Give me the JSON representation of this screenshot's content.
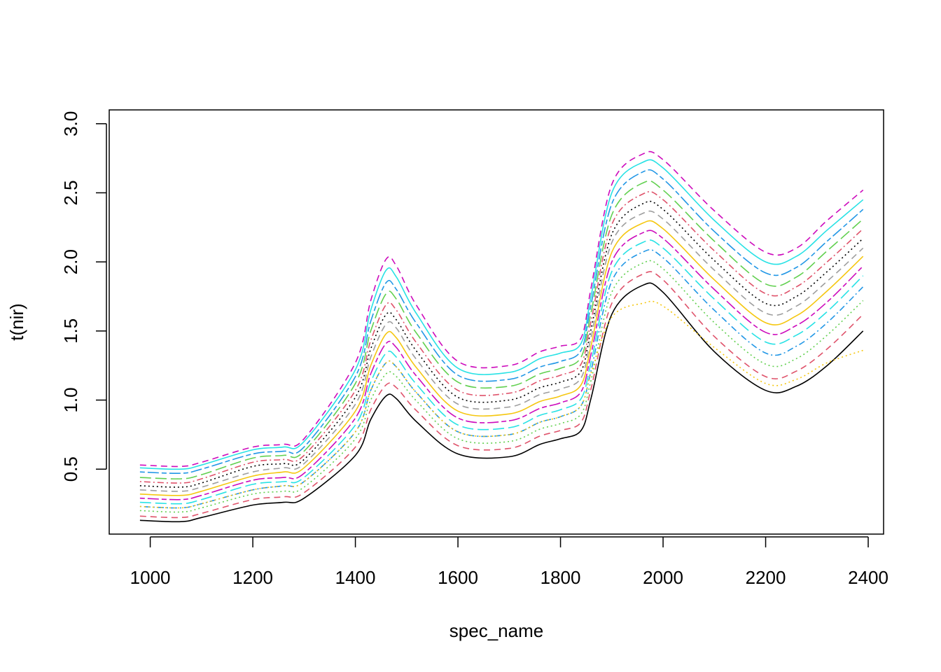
{
  "chart_data": {
    "type": "line",
    "title": "",
    "xlabel": "spec_name",
    "ylabel": "t(nir)",
    "xlim": [
      920,
      2430
    ],
    "ylim": [
      0.03,
      3.1
    ],
    "x_ticks": [
      1000,
      1200,
      1400,
      1600,
      1800,
      2000,
      2200,
      2400
    ],
    "y_ticks": [
      0.5,
      1.0,
      1.5,
      2.0,
      2.5,
      3.0
    ],
    "x_tick_labels": [
      "1000",
      "1200",
      "1400",
      "1600",
      "1800",
      "2000",
      "2200",
      "2400"
    ],
    "y_tick_labels": [
      "0.5",
      "1.0",
      "1.5",
      "2.0",
      "2.5",
      "3.0"
    ],
    "grid": false,
    "legend": "none",
    "series_colors": [
      "#000000",
      "#DF536B",
      "#61D04F",
      "#2297E6",
      "#28E2E5",
      "#CD0BBC",
      "#F5C710",
      "#9E9E9E"
    ],
    "line_styles": [
      "solid",
      "dashed",
      "dotted",
      "dotdash",
      "longdash",
      "twodash"
    ],
    "x": [
      980,
      1060,
      1100,
      1200,
      1260,
      1300,
      1400,
      1430,
      1460,
      1480,
      1520,
      1600,
      1700,
      1760,
      1800,
      1840,
      1860,
      1900,
      1960,
      2000,
      2100,
      2200,
      2260,
      2320,
      2390
    ],
    "series": [
      {
        "values": [
          0.13,
          0.12,
          0.15,
          0.24,
          0.26,
          0.29,
          0.6,
          0.86,
          1.03,
          1.01,
          0.84,
          0.61,
          0.59,
          0.68,
          0.72,
          0.78,
          1.02,
          1.62,
          1.83,
          1.78,
          1.35,
          1.07,
          1.1,
          1.25,
          1.5
        ]
      },
      {
        "values": [
          0.16,
          0.15,
          0.18,
          0.28,
          0.3,
          0.33,
          0.66,
          0.93,
          1.11,
          1.09,
          0.92,
          0.67,
          0.65,
          0.74,
          0.78,
          0.84,
          1.09,
          1.7,
          1.91,
          1.87,
          1.46,
          1.17,
          1.21,
          1.37,
          1.62
        ]
      },
      {
        "values": [
          0.2,
          0.19,
          0.22,
          0.32,
          0.34,
          0.37,
          0.72,
          1.0,
          1.19,
          1.17,
          0.99,
          0.72,
          0.7,
          0.79,
          0.83,
          0.9,
          1.15,
          1.78,
          1.99,
          1.95,
          1.56,
          1.26,
          1.3,
          1.47,
          1.72
        ]
      },
      {
        "values": [
          0.23,
          0.22,
          0.25,
          0.35,
          0.38,
          0.41,
          0.77,
          1.07,
          1.27,
          1.24,
          1.05,
          0.77,
          0.75,
          0.84,
          0.88,
          0.96,
          1.22,
          1.86,
          2.07,
          2.03,
          1.65,
          1.34,
          1.39,
          1.56,
          1.82
        ]
      },
      {
        "values": [
          0.26,
          0.25,
          0.28,
          0.39,
          0.41,
          0.44,
          0.82,
          1.13,
          1.34,
          1.31,
          1.11,
          0.82,
          0.8,
          0.89,
          0.93,
          1.01,
          1.28,
          1.93,
          2.14,
          2.1,
          1.73,
          1.42,
          1.47,
          1.64,
          1.9
        ]
      },
      {
        "values": [
          0.29,
          0.28,
          0.31,
          0.42,
          0.44,
          0.47,
          0.87,
          1.19,
          1.41,
          1.38,
          1.17,
          0.87,
          0.85,
          0.94,
          0.98,
          1.06,
          1.34,
          2.0,
          2.21,
          2.17,
          1.8,
          1.49,
          1.54,
          1.71,
          1.97
        ]
      },
      {
        "values": [
          0.32,
          0.31,
          0.34,
          0.45,
          0.48,
          0.51,
          0.92,
          1.25,
          1.48,
          1.45,
          1.23,
          0.92,
          0.9,
          0.99,
          1.03,
          1.11,
          1.4,
          2.07,
          2.28,
          2.24,
          1.87,
          1.56,
          1.61,
          1.79,
          2.04
        ]
      },
      {
        "values": [
          0.35,
          0.34,
          0.37,
          0.48,
          0.51,
          0.54,
          0.97,
          1.31,
          1.55,
          1.52,
          1.29,
          0.97,
          0.95,
          1.04,
          1.08,
          1.16,
          1.46,
          2.14,
          2.35,
          2.31,
          1.94,
          1.63,
          1.68,
          1.86,
          2.1
        ]
      },
      {
        "values": [
          0.38,
          0.37,
          0.4,
          0.52,
          0.54,
          0.57,
          1.02,
          1.37,
          1.62,
          1.58,
          1.35,
          1.02,
          1.0,
          1.09,
          1.13,
          1.21,
          1.52,
          2.2,
          2.42,
          2.38,
          2.01,
          1.7,
          1.75,
          1.93,
          2.17
        ]
      },
      {
        "values": [
          0.41,
          0.4,
          0.43,
          0.55,
          0.57,
          0.6,
          1.07,
          1.43,
          1.69,
          1.65,
          1.41,
          1.07,
          1.05,
          1.14,
          1.18,
          1.26,
          1.58,
          2.27,
          2.49,
          2.45,
          2.08,
          1.77,
          1.82,
          2.0,
          2.24
        ]
      },
      {
        "values": [
          0.44,
          0.43,
          0.46,
          0.58,
          0.6,
          0.63,
          1.12,
          1.5,
          1.77,
          1.73,
          1.48,
          1.13,
          1.1,
          1.19,
          1.23,
          1.31,
          1.64,
          2.34,
          2.57,
          2.52,
          2.15,
          1.84,
          1.89,
          2.08,
          2.31
        ]
      },
      {
        "values": [
          0.48,
          0.47,
          0.5,
          0.61,
          0.63,
          0.66,
          1.17,
          1.57,
          1.85,
          1.8,
          1.55,
          1.18,
          1.15,
          1.24,
          1.28,
          1.36,
          1.7,
          2.42,
          2.65,
          2.6,
          2.22,
          1.92,
          1.96,
          2.15,
          2.38
        ]
      },
      {
        "values": [
          0.51,
          0.5,
          0.53,
          0.64,
          0.66,
          0.7,
          1.22,
          1.65,
          1.94,
          1.89,
          1.62,
          1.23,
          1.2,
          1.3,
          1.34,
          1.41,
          1.76,
          2.5,
          2.72,
          2.68,
          2.3,
          2.0,
          2.04,
          2.23,
          2.45
        ]
      },
      {
        "values": [
          0.53,
          0.52,
          0.55,
          0.66,
          0.68,
          0.72,
          1.27,
          1.72,
          2.02,
          1.97,
          1.68,
          1.28,
          1.25,
          1.35,
          1.39,
          1.45,
          1.82,
          2.56,
          2.78,
          2.74,
          2.37,
          2.07,
          2.1,
          2.3,
          2.52
        ]
      },
      {
        "values": [
          0.23,
          0.22,
          0.25,
          0.35,
          0.38,
          0.41,
          0.77,
          1.07,
          1.27,
          1.24,
          1.05,
          0.77,
          0.75,
          0.84,
          0.88,
          0.96,
          1.2,
          1.6,
          1.7,
          1.68,
          1.38,
          1.12,
          1.15,
          1.27,
          1.36
        ]
      }
    ]
  }
}
